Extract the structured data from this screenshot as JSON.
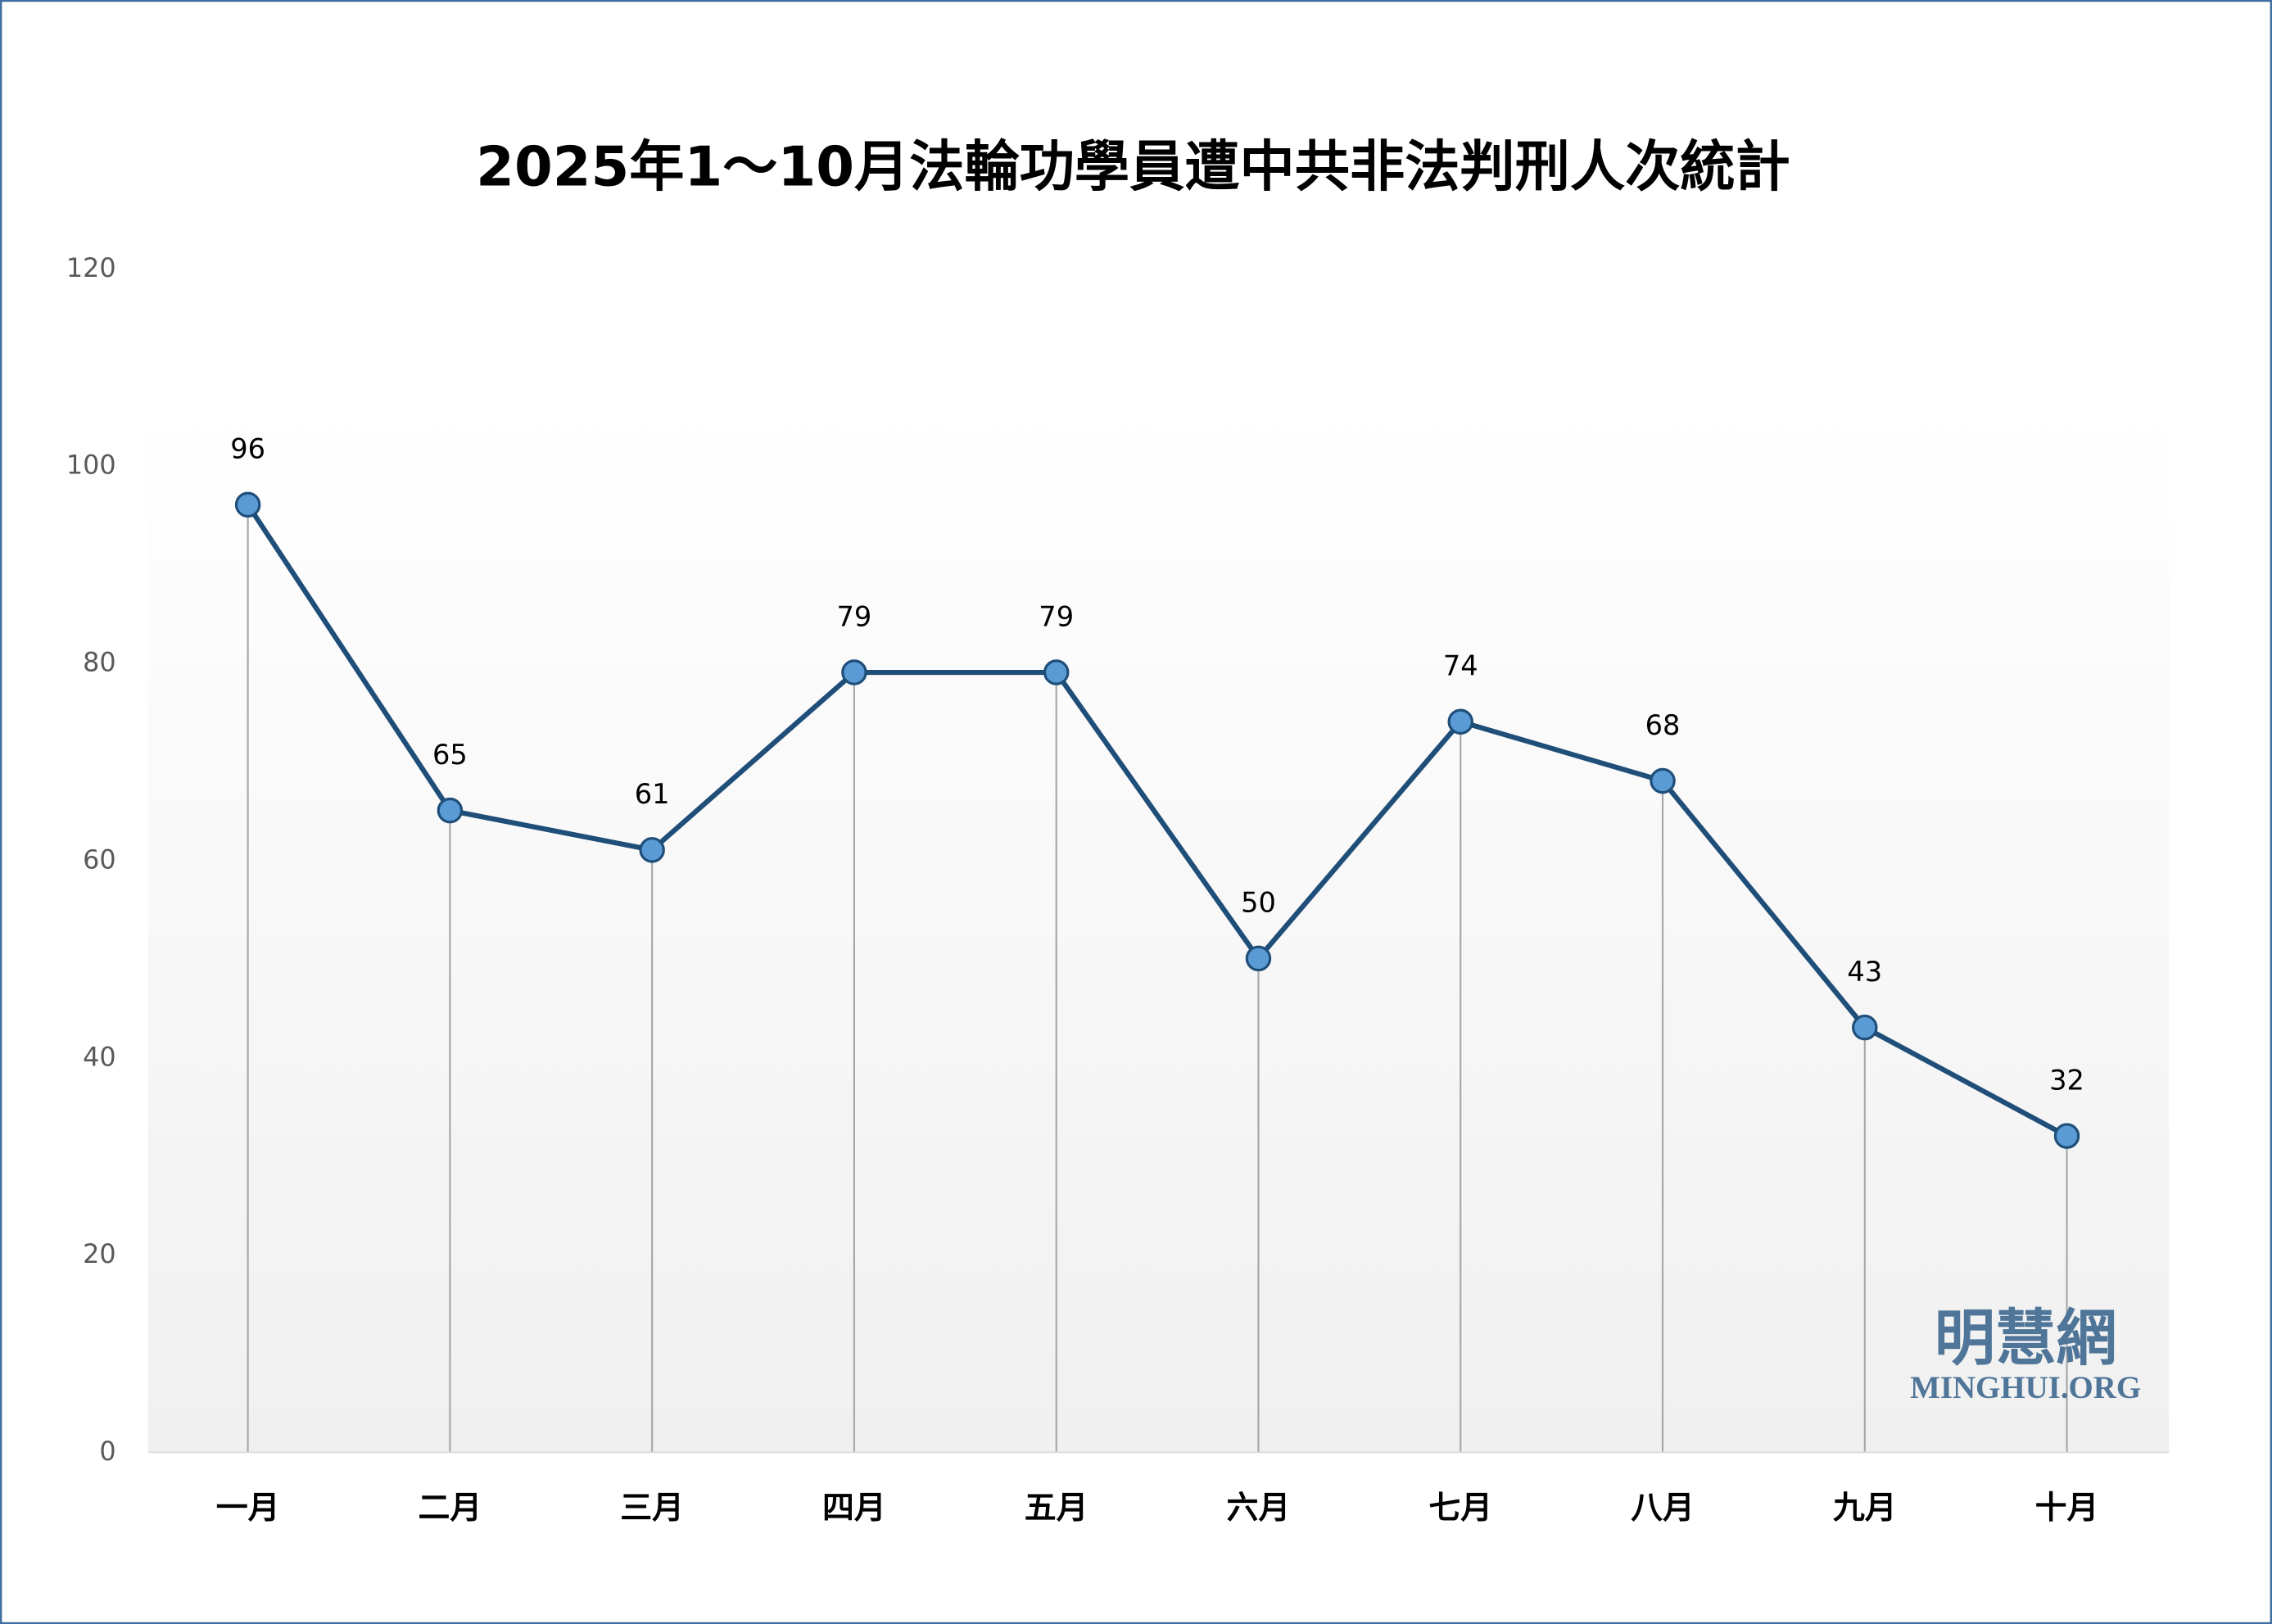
{
  "chart_data": {
    "type": "line",
    "title": "2025年1～10月法輪功學員遭中共非法判刑人次統計",
    "categories": [
      "一月",
      "二月",
      "三月",
      "四月",
      "五月",
      "六月",
      "七月",
      "八月",
      "九月",
      "十月"
    ],
    "values": [
      96,
      65,
      61,
      79,
      79,
      50,
      74,
      68,
      43,
      32
    ],
    "ylim": [
      0,
      120
    ],
    "yticks": [
      0,
      20,
      40,
      60,
      80,
      100,
      120
    ],
    "xlabel": "",
    "ylabel": "",
    "grid": false,
    "legend": "none",
    "drop_lines": true,
    "data_labels": true,
    "colors": {
      "line": "#1f4e79",
      "marker": "#5b9bd5",
      "drop_line": "#a6a6a6",
      "border": "#3d6fa0"
    }
  },
  "watermark": {
    "chinese": "明慧網",
    "english": "MINGHUI.ORG"
  }
}
